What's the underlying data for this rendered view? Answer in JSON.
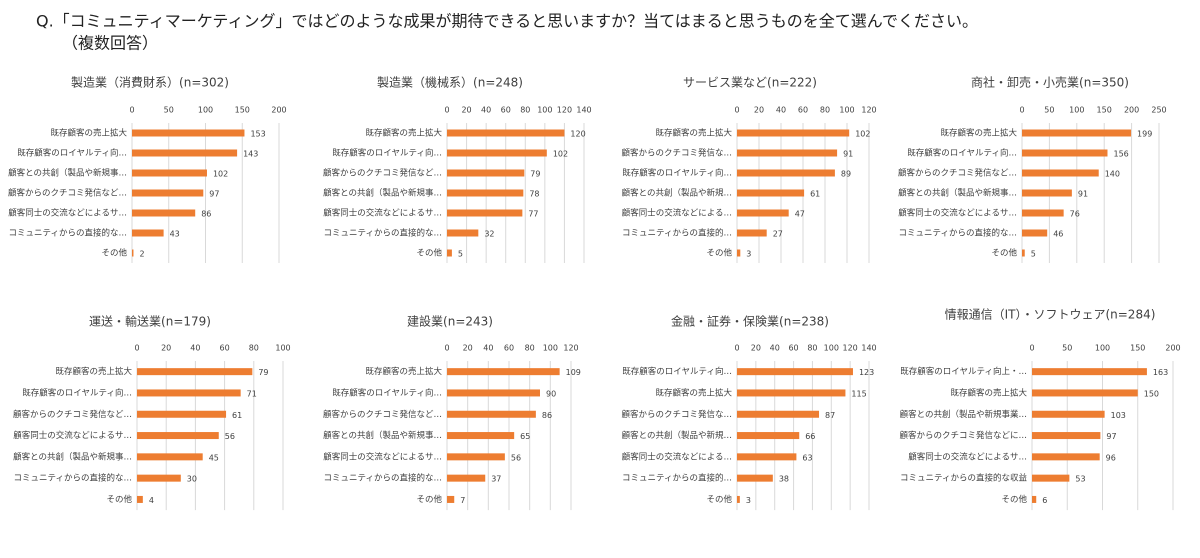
{
  "title": [
    "Q.「コミュニティマーケティング」ではどのような成果が期待できると思いますか？当てはまると思うものを全て選んでください。",
    "（複数回答）"
  ],
  "chart_data": [
    {
      "type": "bar",
      "horizontal": true,
      "title": "製造業（消費財系）(n=302)",
      "color": "#ed7d31",
      "grid": true,
      "xlim": [
        0,
        200
      ],
      "xticks": [
        0,
        50,
        100,
        150,
        200
      ],
      "categories": [
        "既存顧客の売上拡大",
        "既存顧客のロイヤルティ向…",
        "顧客との共創（製品や新規事…",
        "顧客からのクチコミ発信など…",
        "顧客同士の交流などによるサ…",
        "コミュニティからの直接的な…",
        "その他"
      ],
      "values": [
        153,
        143,
        102,
        97,
        86,
        43,
        2
      ]
    },
    {
      "type": "bar",
      "horizontal": true,
      "title": "製造業（機械系）(n=248)",
      "color": "#ed7d31",
      "grid": true,
      "xlim": [
        0,
        140
      ],
      "xticks": [
        0,
        20,
        40,
        60,
        80,
        100,
        120,
        140
      ],
      "categories": [
        "既存顧客の売上拡大",
        "既存顧客のロイヤルティ向…",
        "顧客からのクチコミ発信など…",
        "顧客との共創（製品や新規事…",
        "顧客同士の交流などによるサ…",
        "コミュニティからの直接的な…",
        "その他"
      ],
      "values": [
        120,
        102,
        79,
        78,
        77,
        32,
        5
      ]
    },
    {
      "type": "bar",
      "horizontal": true,
      "title": "サービス業など(n=222)",
      "color": "#ed7d31",
      "grid": true,
      "xlim": [
        0,
        120
      ],
      "xticks": [
        0,
        20,
        40,
        60,
        80,
        100,
        120
      ],
      "categories": [
        "既存顧客の売上拡大",
        "顧客からのクチコミ発信な…",
        "既存顧客のロイヤルティ向…",
        "顧客との共創（製品や新規…",
        "顧客同士の交流などによる…",
        "コミュニティからの直接的…",
        "その他"
      ],
      "values": [
        102,
        91,
        89,
        61,
        47,
        27,
        3
      ]
    },
    {
      "type": "bar",
      "horizontal": true,
      "title": "商社・卸売・小売業(n=350)",
      "color": "#ed7d31",
      "grid": true,
      "xlim": [
        0,
        250
      ],
      "xticks": [
        0,
        50,
        100,
        150,
        200,
        250
      ],
      "categories": [
        "既存顧客の売上拡大",
        "既存顧客のロイヤルティ向…",
        "顧客からのクチコミ発信など…",
        "顧客との共創（製品や新規事…",
        "顧客同士の交流などによるサ…",
        "コミュニティからの直接的な…",
        "その他"
      ],
      "values": [
        199,
        156,
        140,
        91,
        76,
        46,
        5
      ]
    },
    {
      "type": "bar",
      "horizontal": true,
      "title": "運送・輸送業(n=179)",
      "color": "#ed7d31",
      "grid": true,
      "xlim": [
        0,
        100
      ],
      "xticks": [
        0,
        20,
        40,
        60,
        80,
        100
      ],
      "categories": [
        "既存顧客の売上拡大",
        "既存顧客のロイヤルティ向…",
        "顧客からのクチコミ発信など…",
        "顧客同士の交流などによるサ…",
        "顧客との共創（製品や新規事…",
        "コミュニティからの直接的な…",
        "その他"
      ],
      "values": [
        79,
        71,
        61,
        56,
        45,
        30,
        4
      ]
    },
    {
      "type": "bar",
      "horizontal": true,
      "title": "建設業(n=243)",
      "color": "#ed7d31",
      "grid": true,
      "xlim": [
        0,
        120
      ],
      "xticks": [
        0,
        20,
        40,
        60,
        80,
        100,
        120
      ],
      "categories": [
        "既存顧客の売上拡大",
        "既存顧客のロイヤルティ向…",
        "顧客からのクチコミ発信など…",
        "顧客との共創（製品や新規事…",
        "顧客同士の交流などによるサ…",
        "コミュニティからの直接的な…",
        "その他"
      ],
      "values": [
        109,
        90,
        86,
        65,
        56,
        37,
        7
      ]
    },
    {
      "type": "bar",
      "horizontal": true,
      "title": "金融・証券・保険業(n=238)",
      "color": "#ed7d31",
      "grid": true,
      "xlim": [
        0,
        140
      ],
      "xticks": [
        0,
        20,
        40,
        60,
        80,
        100,
        120,
        140
      ],
      "categories": [
        "既存顧客のロイヤルティ向…",
        "既存顧客の売上拡大",
        "顧客からのクチコミ発信な…",
        "顧客との共創（製品や新規…",
        "顧客同士の交流などによる…",
        "コミュニティからの直接的…",
        "その他"
      ],
      "values": [
        123,
        115,
        87,
        66,
        63,
        38,
        3
      ]
    },
    {
      "type": "bar",
      "horizontal": true,
      "title": "情報通信（IT）・ソフトウェア(n=284)",
      "color": "#ed7d31",
      "grid": true,
      "xlim": [
        0,
        200
      ],
      "xticks": [
        0,
        50,
        100,
        150,
        200
      ],
      "categories": [
        "既存顧客のロイヤルティ向上・…",
        "既存顧客の売上拡大",
        "顧客との共創（製品や新規事業…",
        "顧客からのクチコミ発信などに…",
        "顧客同士の交流などによるサ…",
        "コミュニティからの直接的な収益",
        "その他"
      ],
      "values": [
        163,
        150,
        103,
        97,
        96,
        53,
        6
      ]
    }
  ]
}
